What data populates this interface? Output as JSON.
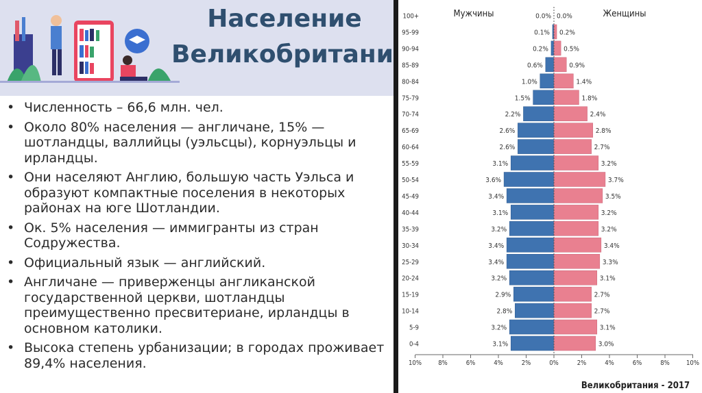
{
  "slide": {
    "title_line1": "Население",
    "title_line2": "Великобритании",
    "bullets": [
      "Численность – 66,6 млн. чел.",
      "Около 80% населения — англичане, 15% — шотландцы, валлийцы (уэльсцы), корнуэльцы и ирландцы.",
      "Они населяют Англию, большую часть Уэльса и образуют компактные поселения в некоторых районах на юге Шотландии.",
      "Ок. 5% населения — иммигранты из стран Содружества.",
      "Официальный язык — английский.",
      "Англичане — приверженцы англиканской государственной церкви, шотландцы преимущественно пресвитериане, ирландцы в основном католики.",
      "Высока степень урбанизации; в городах проживает 89,4% населения."
    ],
    "bullet_symbol": "•"
  },
  "chart_data": {
    "type": "bar",
    "orientation": "horizontal-pyramid",
    "title": "Великобритания - 2017",
    "categories": [
      "100+",
      "95-99",
      "90-94",
      "85-89",
      "80-84",
      "75-79",
      "70-74",
      "65-69",
      "60-64",
      "55-59",
      "50-54",
      "45-49",
      "40-44",
      "35-39",
      "30-34",
      "25-29",
      "20-24",
      "15-19",
      "10-14",
      "5-9",
      "0-4"
    ],
    "series": [
      {
        "name": "Мужчины",
        "color": "#3f73b0",
        "values": [
          0.0,
          0.1,
          0.2,
          0.6,
          1.0,
          1.5,
          2.2,
          2.6,
          2.6,
          3.1,
          3.6,
          3.4,
          3.1,
          3.2,
          3.4,
          3.4,
          3.2,
          2.9,
          2.8,
          3.2,
          3.1
        ],
        "labels": [
          "0.0%",
          "0.1%",
          "0.2%",
          "0.6%",
          "1.0%",
          "1.5%",
          "2.2%",
          "2.6%",
          "2.6%",
          "3.1%",
          "3.6%",
          "3.4%",
          "3.1%",
          "3.2%",
          "3.4%",
          "3.4%",
          "3.2%",
          "2.9%",
          "2.8%",
          "3.2%",
          "3.1%"
        ]
      },
      {
        "name": "Женщины",
        "color": "#e98090",
        "values": [
          0.0,
          0.2,
          0.5,
          0.9,
          1.4,
          1.8,
          2.4,
          2.8,
          2.7,
          3.2,
          3.7,
          3.5,
          3.2,
          3.2,
          3.4,
          3.3,
          3.1,
          2.7,
          2.7,
          3.1,
          3.0
        ],
        "labels": [
          "0.0%",
          "0.2%",
          "0.5%",
          "0.9%",
          "1.4%",
          "1.8%",
          "2.4%",
          "2.8%",
          "2.7%",
          "3.2%",
          "3.7%",
          "3.5%",
          "3.2%",
          "3.2%",
          "3.4%",
          "3.3%",
          "3.1%",
          "2.7%",
          "2.7%",
          "3.1%",
          "3.0%"
        ]
      }
    ],
    "xlim": [
      -10,
      10
    ],
    "xticks": [
      "10%",
      "8%",
      "6%",
      "4%",
      "2%",
      "0%",
      "2%",
      "4%",
      "6%",
      "8%",
      "10%"
    ],
    "grid": false,
    "legend": "top"
  }
}
